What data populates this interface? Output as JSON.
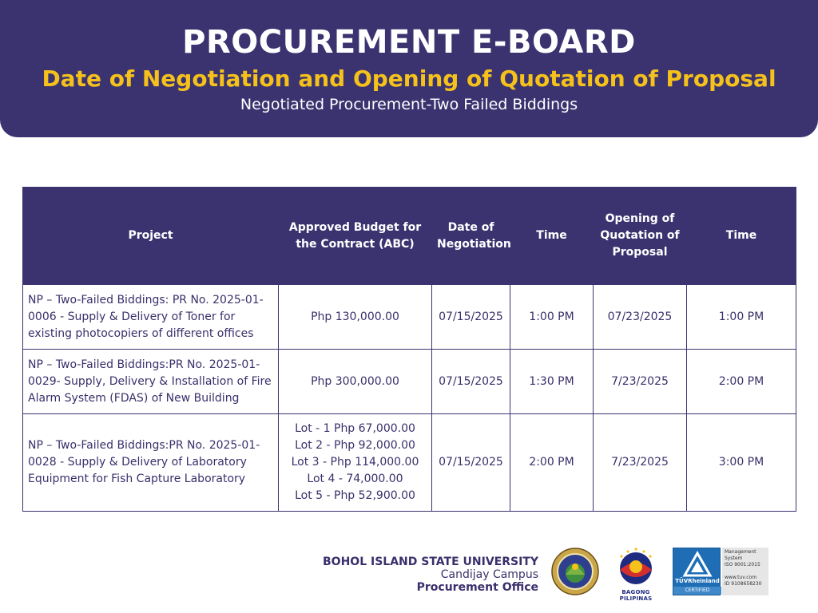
{
  "header": {
    "title": "PROCUREMENT E-BOARD",
    "subtitle": "Date of Negotiation and Opening of Quotation of Proposal",
    "caption": "Negotiated Procurement-Two Failed Biddings"
  },
  "table": {
    "columns": [
      "Project",
      "Approved Budget for the Contract (ABC)",
      "Date of Negotiation",
      "Time",
      "Opening of Quotation of Proposal",
      "Time"
    ],
    "rows": [
      {
        "project": "NP – Two-Failed Biddings: PR No. 2025-01-0006 - Supply & Delivery of Toner for existing photocopiers of different offices",
        "abc": [
          "Php 130,000.00"
        ],
        "negotiation_date": "07/15/2025",
        "negotiation_time": "1:00 PM",
        "opening_date": "07/23/2025",
        "opening_time": "1:00 PM"
      },
      {
        "project": "NP – Two-Failed Biddings:PR No. 2025-01-0029- Supply, Delivery & Installation of Fire Alarm System (FDAS) of New Building",
        "abc": [
          "Php 300,000.00"
        ],
        "negotiation_date": "07/15/2025",
        "negotiation_time": "1:30 PM",
        "opening_date": "7/23/2025",
        "opening_time": "2:00 PM"
      },
      {
        "project": "NP – Two-Failed Biddings:PR No. 2025-01-0028 - Supply & Delivery of Laboratory Equipment for Fish Capture Laboratory",
        "abc": [
          "Lot - 1 Php 67,000.00",
          "Lot 2 - Php 92,000.00",
          "Lot 3 - Php 114,000.00",
          "Lot 4 - 74,000.00",
          "Lot 5 - Php 52,900.00"
        ],
        "negotiation_date": "07/15/2025",
        "negotiation_time": "2:00 PM",
        "opening_date": "7/23/2025",
        "opening_time": "3:00 PM"
      }
    ]
  },
  "footer": {
    "university": "BOHOL ISLAND STATE UNIVERSITY",
    "campus": "Candijay Campus",
    "office": "Procurement Office",
    "bagong_pilipinas_label": "BAGONG PILIPINAS",
    "tuv": {
      "brand": "TÜVRheinland",
      "certified": "CERTIFIED",
      "info_line1": "Management",
      "info_line2": "System",
      "info_line3": "ISO 9001:2015",
      "info_line4": "www.tuv.com",
      "info_line5": "ID 9108658230"
    },
    "colors": {
      "primary": "#3b3370",
      "accent": "#f5c11b",
      "tuv_blue": "#1f6db5"
    }
  }
}
